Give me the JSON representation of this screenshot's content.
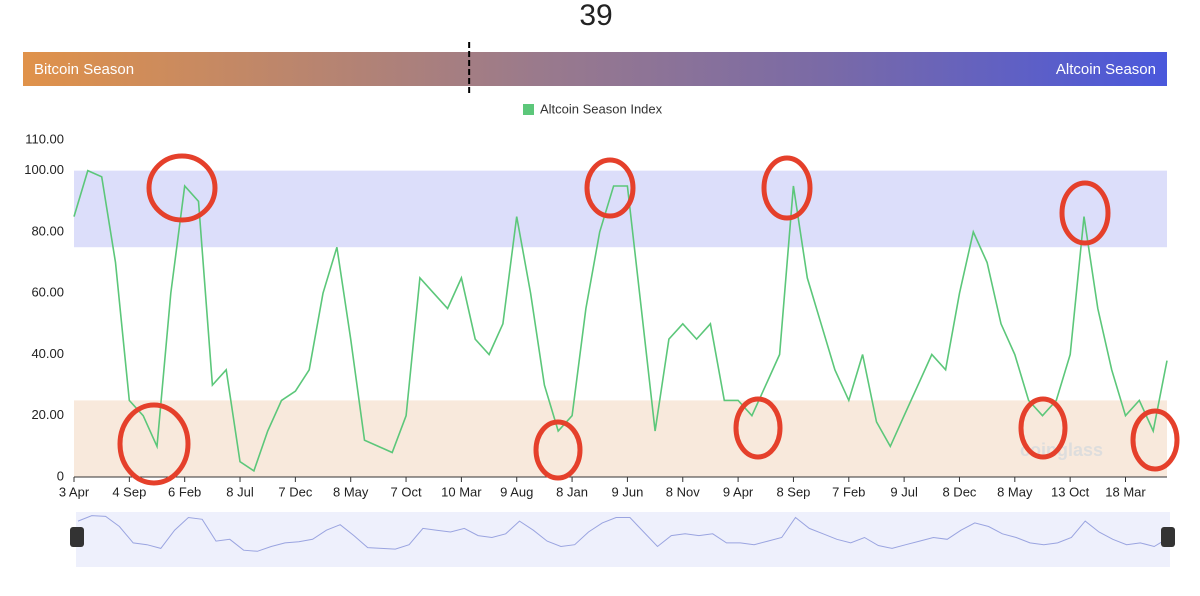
{
  "chart_data": {
    "type": "line",
    "current_value": 39,
    "gauge_left_label": "Bitcoin Season",
    "gauge_right_label": "Altcoin Season",
    "gauge_range": [
      0,
      100
    ],
    "watermark": "coinglass",
    "categories": [
      "3 Apr",
      null,
      null,
      null,
      "4 Sep",
      null,
      null,
      null,
      "6 Feb",
      null,
      null,
      null,
      "8 Jul",
      null,
      null,
      null,
      "7 Dec",
      null,
      null,
      null,
      "8 May",
      null,
      null,
      null,
      "7 Oct",
      null,
      null,
      null,
      "10 Mar",
      null,
      null,
      null,
      "9 Aug",
      null,
      null,
      null,
      "8 Jan",
      null,
      null,
      null,
      "9 Jun",
      null,
      null,
      null,
      "8 Nov",
      null,
      null,
      null,
      "9 Apr",
      null,
      null,
      null,
      "8 Sep",
      null,
      null,
      null,
      "7 Feb",
      null,
      null,
      null,
      "9 Jul",
      null,
      null,
      null,
      "8 Dec",
      null,
      null,
      null,
      "8 May",
      null,
      null,
      null,
      "13 Oct",
      null,
      null,
      null,
      "18 Mar",
      null,
      null,
      null
    ],
    "series": [
      {
        "name": "Altcoin Season Index",
        "color": "#5cc77a",
        "values": [
          85,
          100,
          98,
          70,
          25,
          20,
          10,
          60,
          95,
          90,
          30,
          35,
          5,
          2,
          15,
          25,
          28,
          35,
          60,
          75,
          45,
          12,
          10,
          8,
          20,
          65,
          60,
          55,
          65,
          45,
          40,
          50,
          85,
          60,
          30,
          15,
          20,
          55,
          80,
          95,
          95,
          55,
          15,
          45,
          50,
          45,
          50,
          25,
          25,
          20,
          30,
          40,
          95,
          65,
          50,
          35,
          25,
          40,
          18,
          10,
          20,
          30,
          40,
          35,
          60,
          80,
          70,
          50,
          40,
          25,
          20,
          25,
          40,
          85,
          55,
          35,
          20,
          25,
          15,
          38
        ]
      }
    ],
    "bands": [
      {
        "range": [
          75,
          100
        ],
        "color": "#dcdefa"
      },
      {
        "range": [
          0,
          25
        ],
        "color": "#f8e9dc"
      }
    ],
    "ylim": [
      0,
      110
    ],
    "yticks": [
      0,
      {
        "value": 20,
        "label": "20.00"
      },
      {
        "value": 40,
        "label": "40.00"
      },
      {
        "value": 60,
        "label": "60.00"
      },
      {
        "value": 80,
        "label": "80.00"
      },
      {
        "value": 100,
        "label": "100.00"
      },
      {
        "value": 110,
        "label": "110.00"
      }
    ]
  }
}
